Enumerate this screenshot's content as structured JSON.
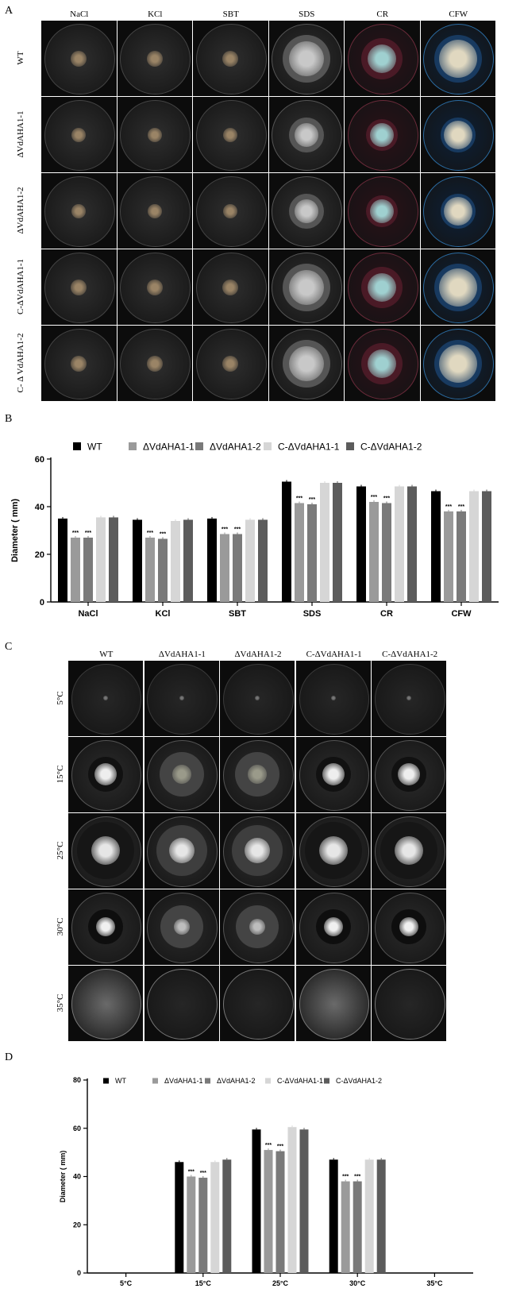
{
  "panels": {
    "a": {
      "letter": "A",
      "columns": [
        "NaCl",
        "KCl",
        "SBT",
        "SDS",
        "CR",
        "CFW"
      ],
      "rows": [
        "WT",
        "ΔVdAHA1-1",
        "ΔVdAHA1-2",
        "C-ΔVdAHA1-1",
        "C- Δ VdAHA1-2"
      ]
    },
    "b": {
      "letter": "B"
    },
    "c": {
      "letter": "C",
      "columns": [
        "WT",
        "ΔVdAHA1-1",
        "ΔVdAHA1-2",
        "C-ΔVdAHA1-1",
        "C-ΔVdAHA1-2"
      ],
      "rows": [
        "5°C",
        "15°C",
        "25°C",
        "30°C",
        "35°C"
      ]
    },
    "d": {
      "letter": "D"
    }
  },
  "colors": {
    "WT": "#000000",
    "dVdAHA1_1": "#9a9a9a",
    "dVdAHA1_2": "#7a7a7a",
    "C_dVdAHA1_1": "#d6d6d6",
    "C_dVdAHA1_2": "#5c5c5c"
  },
  "chart_data": [
    {
      "type": "bar",
      "ylabel": "Diameter ( mm)",
      "ylim": [
        0,
        60
      ],
      "yticks": [
        "0",
        "20",
        "40",
        "60"
      ],
      "categories": [
        "NaCl",
        "KCl",
        "SBT",
        "SDS",
        "CR",
        "CFW"
      ],
      "series": [
        {
          "name": "WT",
          "values": [
            35,
            34.5,
            35,
            50.5,
            48.5,
            46.5
          ]
        },
        {
          "name": "ΔVdAHA1-1",
          "values": [
            27,
            27,
            28.5,
            41.5,
            42,
            38
          ]
        },
        {
          "name": "ΔVdAHA1-2",
          "values": [
            27,
            26.5,
            28.5,
            41,
            41.5,
            38
          ]
        },
        {
          "name": "C-ΔVdAHA1-1",
          "values": [
            35.5,
            34,
            34.5,
            50,
            48.5,
            46.5
          ]
        },
        {
          "name": "C-ΔVdAHA1-2",
          "values": [
            35.5,
            34.5,
            34.5,
            50,
            48.5,
            46.5
          ]
        }
      ],
      "significance": "***",
      "legend": "top"
    },
    {
      "type": "bar",
      "ylabel": "Diameter ( mm)",
      "ylim": [
        0,
        80
      ],
      "yticks": [
        "0",
        "20",
        "40",
        "60",
        "80"
      ],
      "categories": [
        "5°C",
        "15°C",
        "25°C",
        "30°C",
        "35°C"
      ],
      "series": [
        {
          "name": "WT",
          "values": [
            0,
            46,
            59.5,
            47,
            0
          ]
        },
        {
          "name": "ΔVdAHA1-1",
          "values": [
            0,
            40,
            51,
            38,
            0
          ]
        },
        {
          "name": "ΔVdAHA1-2",
          "values": [
            0,
            39.5,
            50.5,
            38,
            0
          ]
        },
        {
          "name": "C-ΔVdAHA1-1",
          "values": [
            0,
            46,
            60.5,
            47,
            0
          ]
        },
        {
          "name": "C-ΔVdAHA1-2",
          "values": [
            0,
            47,
            59.5,
            47,
            0
          ]
        }
      ],
      "significance": "***",
      "legend": "top"
    }
  ]
}
